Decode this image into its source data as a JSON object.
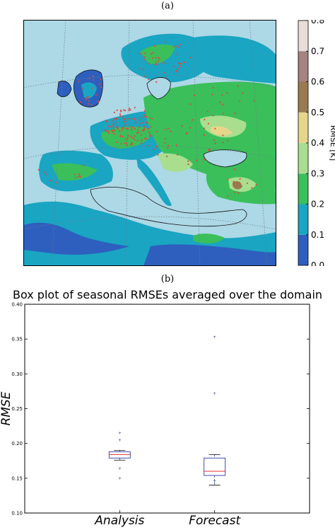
{
  "panels": {
    "a_label": "(a)",
    "b_label": "(b)"
  },
  "colors": {
    "sea": "#add8e6",
    "land_dark_blue": "#2e5fbf",
    "land_teal": "#1aa5c2",
    "land_green": "#3bbf5a",
    "land_light_green": "#a8de8e",
    "land_yellow": "#e6d68a",
    "land_brown": "#9a7b50",
    "land_mauve": "#a3847e",
    "station_dots": "#e0473e",
    "box_blue": "#2e3aa8",
    "median_red": "#e03030"
  },
  "chart_data": [
    {
      "type": "heatmap",
      "description_of_type": "map",
      "colorbar": {
        "label": "RMSE [K]",
        "ticks": [
          "0.0",
          "0.1",
          "0.2",
          "0.3",
          "0.4",
          "0.5",
          "0.6",
          "0.7",
          "0.8"
        ],
        "range": [
          0.0,
          0.8
        ],
        "levels": [
          {
            "from": 0.0,
            "to": 0.1,
            "color": "#2e5fbf"
          },
          {
            "from": 0.1,
            "to": 0.2,
            "color": "#1aa5c2"
          },
          {
            "from": 0.2,
            "to": 0.3,
            "color": "#3bbf5a"
          },
          {
            "from": 0.3,
            "to": 0.4,
            "color": "#a8de8e"
          },
          {
            "from": 0.4,
            "to": 0.5,
            "color": "#e6d68a"
          },
          {
            "from": 0.5,
            "to": 0.6,
            "color": "#9a7b50"
          },
          {
            "from": 0.6,
            "to": 0.7,
            "color": "#a3847e"
          },
          {
            "from": 0.7,
            "to": 0.8,
            "color": "#e8ddd8"
          }
        ]
      }
    },
    {
      "type": "box",
      "title": "Box plot of seasonal RMSEs averaged over the domain",
      "ylabel": "RMSE",
      "ylim": [
        0.1,
        0.4
      ],
      "yticks": [
        "0.10",
        "0.15",
        "0.20",
        "0.25",
        "0.30",
        "0.35",
        "0.40"
      ],
      "categories": [
        "Analysis",
        "Forecast"
      ],
      "boxes": [
        {
          "name": "Analysis",
          "q1": 0.179,
          "median": 0.184,
          "q3": 0.188,
          "whisker_low": 0.176,
          "whisker_high": 0.19,
          "fliers": [
            0.215,
            0.205,
            0.164,
            0.15
          ]
        },
        {
          "name": "Forecast",
          "q1": 0.154,
          "median": 0.16,
          "q3": 0.179,
          "whisker_low": 0.14,
          "whisker_high": 0.184,
          "fliers": [
            0.353,
            0.272,
            0.146
          ]
        }
      ]
    }
  ]
}
